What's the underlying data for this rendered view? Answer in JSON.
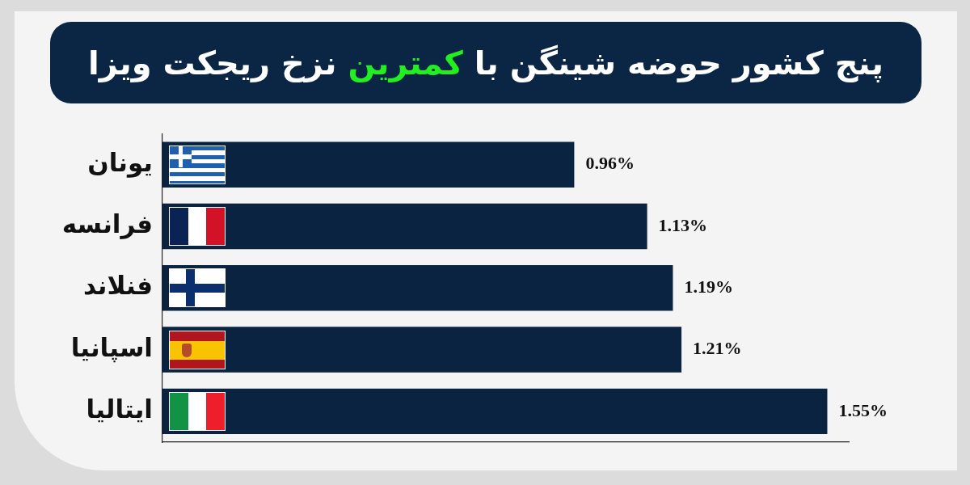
{
  "chart_data": {
    "type": "bar",
    "orientation": "horizontal",
    "title": "پنج کشور حوضه شینگن با کمترین نزخ ریجکت ویزا",
    "categories": [
      "یونان",
      "فرانسه",
      "فنلاند",
      "اسپانیا",
      "ایتالیا"
    ],
    "values": [
      0.96,
      1.13,
      1.19,
      1.21,
      1.55
    ],
    "value_labels": [
      "0.96%",
      "1.13%",
      "1.19%",
      "1.21%",
      "1.55%"
    ],
    "color": "#0a2340",
    "tick_labels": "y"
  }
}
